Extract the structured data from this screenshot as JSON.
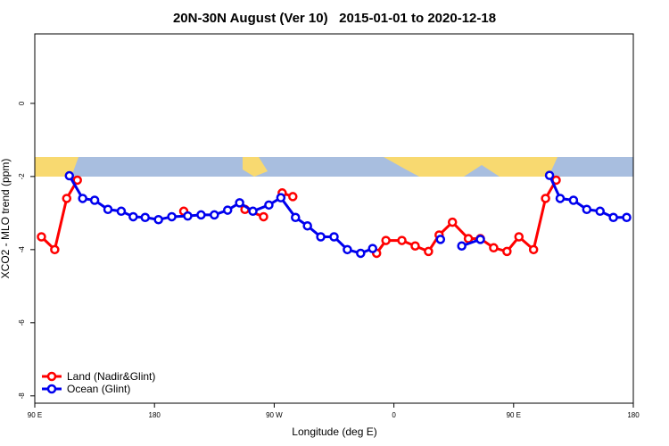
{
  "chart_data": {
    "type": "line",
    "title": "20N-30N August (Ver 10)   2015-01-01 to 2020-12-18",
    "x_label": "Longitude (deg E)",
    "y_label": "XCO2 - MLO trend (ppm)",
    "xlim": [
      90,
      540
    ],
    "xticks": [
      {
        "value": 90,
        "label": "90 E"
      },
      {
        "value": 180,
        "label": "180"
      },
      {
        "value": 270,
        "label": "90 W"
      },
      {
        "value": 360,
        "label": "0"
      },
      {
        "value": 450,
        "label": "90 E"
      },
      {
        "value": 540,
        "label": "180"
      }
    ],
    "ylim": [
      -8.2,
      1.9
    ],
    "yticks": [
      0,
      -2,
      -4,
      -6,
      -8
    ],
    "legend": "bottomleft",
    "series": [
      {
        "name": "Land (Nadir&Glint)",
        "color": "#ff0000",
        "x": [
          95,
          105,
          114,
          122,
          null,
          202,
          null,
          248,
          262,
          null,
          276,
          284,
          null,
          347,
          354,
          366,
          376,
          386,
          394,
          404,
          416,
          425,
          435,
          445,
          454,
          465,
          474,
          482
        ],
        "values": [
          -3.65,
          -4.0,
          -2.6,
          -2.1,
          null,
          -2.95,
          null,
          -2.9,
          -3.1,
          null,
          -2.45,
          -2.55,
          null,
          -4.1,
          -3.75,
          -3.75,
          -3.9,
          -4.05,
          -3.6,
          -3.25,
          -3.7,
          -3.7,
          -3.95,
          -4.05,
          -3.65,
          -4.0,
          -2.6,
          -2.1
        ]
      },
      {
        "name": "Ocean (Glint)",
        "color": "#0000ee",
        "x": [
          116,
          126,
          135,
          145,
          155,
          164,
          173,
          183,
          193,
          205,
          215,
          225,
          235,
          244,
          254,
          266,
          275,
          286,
          295,
          305,
          315,
          325,
          335,
          344,
          null,
          395,
          null,
          411,
          425,
          null,
          477,
          485,
          495,
          505,
          515,
          525,
          535
        ],
        "values": [
          -1.98,
          -2.6,
          -2.65,
          -2.9,
          -2.95,
          -3.1,
          -3.12,
          -3.18,
          -3.1,
          -3.08,
          -3.05,
          -3.05,
          -2.92,
          -2.72,
          -2.95,
          -2.78,
          -2.58,
          -3.12,
          -3.35,
          -3.65,
          -3.65,
          -4.0,
          -4.1,
          -3.97,
          null,
          -3.72,
          null,
          -3.9,
          -3.72,
          null,
          -1.97,
          -2.6,
          -2.65,
          -2.9,
          -2.95,
          -3.12,
          -3.12
        ]
      }
    ]
  }
}
